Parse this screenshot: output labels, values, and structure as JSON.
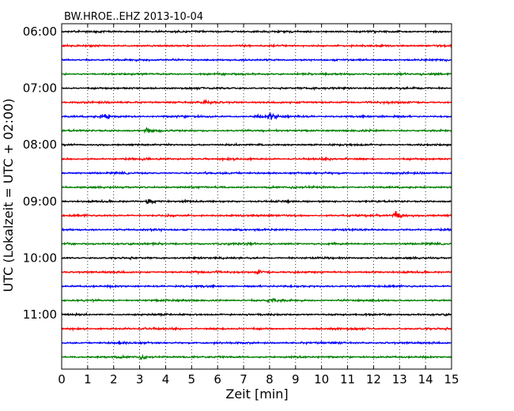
{
  "chart_data": {
    "type": "line",
    "title": "BW.HROE..EHZ 2013-10-04",
    "xlabel": "Zeit  [min]",
    "ylabel": "UTC (Lokalzeit = UTC + 02:00)",
    "xlim": [
      0,
      15
    ],
    "x_ticks": [
      0,
      1,
      2,
      3,
      4,
      5,
      6,
      7,
      8,
      9,
      10,
      11,
      12,
      13,
      14,
      15
    ],
    "y_tick_labels": [
      "06:00",
      "07:00",
      "08:00",
      "09:00",
      "10:00",
      "11:00"
    ],
    "grid": "vertical-dotted",
    "trace_colors": [
      "#000000",
      "#ff0000",
      "#0000ff",
      "#008000"
    ],
    "trace_start_times": [
      "06:00",
      "06:15",
      "06:30",
      "06:45",
      "07:00",
      "07:15",
      "07:30",
      "07:45",
      "08:00",
      "08:15",
      "08:30",
      "08:45",
      "09:00",
      "09:15",
      "09:30",
      "09:45",
      "10:00",
      "10:15",
      "10:30",
      "10:45",
      "11:00",
      "11:15",
      "11:30",
      "11:45"
    ],
    "events": [
      {
        "trace": "07:15",
        "minute": 5.5,
        "amplitude": 0.35
      },
      {
        "trace": "07:30",
        "minute": 1.55,
        "amplitude": 0.9
      },
      {
        "trace": "07:30",
        "minute": 7.4,
        "amplitude": 0.3
      },
      {
        "trace": "07:30",
        "minute": 8.0,
        "amplitude": 0.8
      },
      {
        "trace": "07:45",
        "minute": 3.25,
        "amplitude": 0.5
      },
      {
        "trace": "09:00",
        "minute": 3.3,
        "amplitude": 0.7
      },
      {
        "trace": "09:15",
        "minute": 12.8,
        "amplitude": 1.6
      },
      {
        "trace": "10:15",
        "minute": 7.5,
        "amplitude": 0.45
      },
      {
        "trace": "10:45",
        "minute": 8.0,
        "amplitude": 0.4
      },
      {
        "trace": "11:45",
        "minute": 3.0,
        "amplitude": 0.35
      }
    ]
  }
}
